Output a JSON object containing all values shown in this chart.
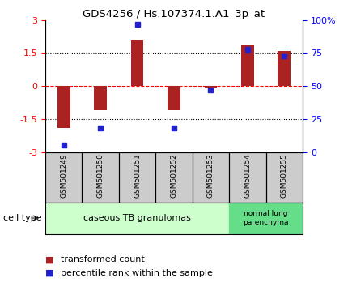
{
  "title": "GDS4256 / Hs.107374.1.A1_3p_at",
  "samples": [
    "GSM501249",
    "GSM501250",
    "GSM501251",
    "GSM501252",
    "GSM501253",
    "GSM501254",
    "GSM501255"
  ],
  "transformed_count": [
    -1.9,
    -1.1,
    2.1,
    -1.1,
    -0.05,
    1.85,
    1.6
  ],
  "percentile_rank": [
    5,
    18,
    97,
    18,
    47,
    78,
    73
  ],
  "ylim_left": [
    -3,
    3
  ],
  "ylim_right": [
    0,
    100
  ],
  "yticks_left": [
    -3,
    -1.5,
    0,
    1.5,
    3
  ],
  "ytick_labels_left": [
    "-3",
    "-1.5",
    "0",
    "1.5",
    "3"
  ],
  "yticks_right": [
    0,
    25,
    50,
    75,
    100
  ],
  "ytick_labels_right": [
    "0",
    "25",
    "50",
    "75",
    "100%"
  ],
  "bar_color": "#aa2222",
  "dot_color": "#2222cc",
  "bar_width": 0.35,
  "dot_size": 5,
  "group1_label": "caseous TB granulomas",
  "group1_color": "#ccffcc",
  "group1_n": 5,
  "group2_label": "normal lung\nparenchyma",
  "group2_color": "#66dd88",
  "group2_n": 2,
  "sample_box_color": "#cccccc",
  "legend_bar_label": "transformed count",
  "legend_dot_label": "percentile rank within the sample",
  "cell_type_label": "cell type"
}
